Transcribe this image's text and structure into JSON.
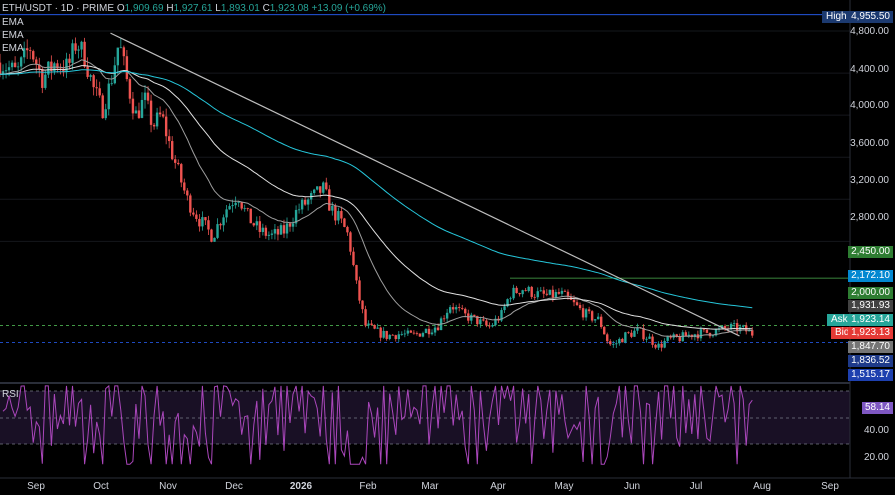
{
  "header": {
    "symbol": "ETH/USDT · 1D · PRIME",
    "o_label": "O",
    "o_value": "1,909.69",
    "h_label": "H",
    "h_value": "1,927.61",
    "l_label": "L",
    "l_value": "1,893.01",
    "c_label": "C",
    "c_value": "1,923.08",
    "change": "+13.09 (+0.69%)"
  },
  "indicators": [
    "EMA",
    "EMA",
    "EMA"
  ],
  "rsi_label": "RSI",
  "price_axis": [
    "4,800.00",
    "4,400.00",
    "4,000.00",
    "3,600.00",
    "3,200.00",
    "2,800.00"
  ],
  "rsi_axis": [
    "40.00",
    "20.00"
  ],
  "time_axis": [
    "Sep",
    "Oct",
    "Nov",
    "Dec",
    "2026",
    "Feb",
    "Mar",
    "Apr",
    "May",
    "Jun",
    "Jul",
    "Aug",
    "Sep"
  ],
  "tags": {
    "high_label": "High",
    "high_value": "4,955.50",
    "level_2450": "2,450.00",
    "ema_value": "2,172.10",
    "level_2000": "2,000.00",
    "ema2_value": "1,931.93",
    "ask_label": "Ask",
    "ask_value": "1,923.14",
    "bid_label": "Bid",
    "bid_value": "1,923.13",
    "low_level": "1,847.70",
    "support": "1,836.52",
    "ema3_value": "1,515.17",
    "rsi_value": "58.14"
  },
  "colors": {
    "up": "#26a69a",
    "down": "#ef5350",
    "ema_fast": "#9e9e9e",
    "ema_mid": "#e0e0e0",
    "ema_slow": "#26c6da",
    "trendline": "#bdbdbd",
    "rsi": "#ab47bc",
    "level_green": "#4caf50",
    "level_blue": "#2962ff"
  },
  "chart_data": {
    "type": "candlestick",
    "price_scale": {
      "min": 1500,
      "max": 5000
    },
    "rsi_scale": {
      "min": 10,
      "max": 70,
      "bands": [
        70,
        30
      ]
    },
    "price_path": [
      [
        0,
        4500
      ],
      [
        0.02,
        4400
      ],
      [
        0.035,
        4650
      ],
      [
        0.05,
        4350
      ],
      [
        0.065,
        4500
      ],
      [
        0.08,
        4450
      ],
      [
        0.09,
        4700
      ],
      [
        0.1,
        4550
      ],
      [
        0.11,
        4250
      ],
      [
        0.12,
        4050
      ],
      [
        0.13,
        4300
      ],
      [
        0.14,
        4700
      ],
      [
        0.15,
        4300
      ],
      [
        0.16,
        4000
      ],
      [
        0.17,
        4150
      ],
      [
        0.18,
        3900
      ],
      [
        0.19,
        4000
      ],
      [
        0.2,
        3700
      ],
      [
        0.21,
        3450
      ],
      [
        0.22,
        3200
      ],
      [
        0.235,
        3000
      ],
      [
        0.25,
        2850
      ],
      [
        0.265,
        3100
      ],
      [
        0.28,
        3250
      ],
      [
        0.29,
        3050
      ],
      [
        0.305,
        2900
      ],
      [
        0.32,
        2850
      ],
      [
        0.335,
        2900
      ],
      [
        0.35,
        3100
      ],
      [
        0.365,
        3200
      ],
      [
        0.38,
        3300
      ],
      [
        0.39,
        3100
      ],
      [
        0.4,
        3000
      ],
      [
        0.41,
        2850
      ],
      [
        0.42,
        2350
      ],
      [
        0.43,
        2000
      ],
      [
        0.44,
        1950
      ],
      [
        0.455,
        1900
      ],
      [
        0.47,
        1920
      ],
      [
        0.485,
        1900
      ],
      [
        0.5,
        1950
      ],
      [
        0.515,
        2000
      ],
      [
        0.53,
        2200
      ],
      [
        0.545,
        2100
      ],
      [
        0.56,
        2050
      ],
      [
        0.575,
        1980
      ],
      [
        0.59,
        2100
      ],
      [
        0.6,
        2300
      ],
      [
        0.615,
        2350
      ],
      [
        0.63,
        2300
      ],
      [
        0.645,
        2280
      ],
      [
        0.66,
        2300
      ],
      [
        0.675,
        2200
      ],
      [
        0.69,
        2100
      ],
      [
        0.705,
        2050
      ],
      [
        0.715,
        1850
      ],
      [
        0.72,
        1800
      ],
      [
        0.735,
        1900
      ],
      [
        0.75,
        1950
      ],
      [
        0.765,
        1870
      ],
      [
        0.775,
        1800
      ],
      [
        0.785,
        1860
      ],
      [
        0.8,
        1880
      ],
      [
        0.815,
        1920
      ],
      [
        0.83,
        1930
      ],
      [
        0.845,
        1950
      ],
      [
        0.86,
        1980
      ],
      [
        0.875,
        1960
      ],
      [
        0.885,
        1923
      ]
    ],
    "trendline": [
      [
        0.13,
        4780
      ],
      [
        0.87,
        1900
      ]
    ],
    "levels": [
      {
        "value": 4955.5,
        "name": "High"
      },
      {
        "value": 2450,
        "name": "2,450.00"
      },
      {
        "value": 2000,
        "name": "2,000.00"
      },
      {
        "value": 1836.52,
        "name": "1,836.52"
      }
    ],
    "rsi_last": 58.14
  }
}
